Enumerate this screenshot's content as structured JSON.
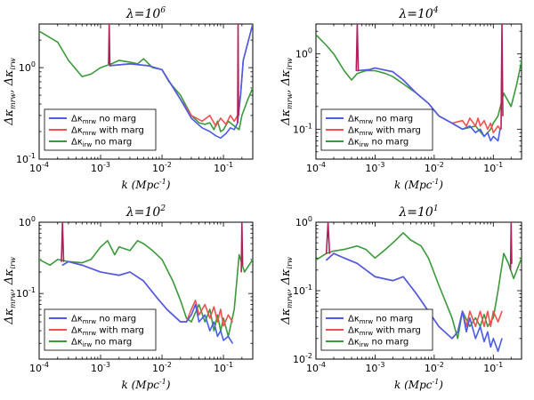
{
  "chart_data": [
    {
      "type": "line",
      "title": "λ = 10^6",
      "xlabel": "k (Mpc^-1)",
      "ylabel": "Δκ_mrw, Δκ_irw",
      "xscale": "log",
      "yscale": "log",
      "xlim": [
        0.0001,
        0.3
      ],
      "ylim": [
        0.1,
        3
      ],
      "x_ticks": [
        "10^-4",
        "10^-3",
        "10^-2",
        "10^-1"
      ],
      "y_ticks": [
        "10^-1",
        "10^0"
      ],
      "legend": {
        "placement": "lower-left",
        "entries": [
          "Δκ_mrw no marg",
          "Δκ_mrw with marg",
          "Δκ_irw no marg"
        ]
      },
      "series": [
        {
          "name": "Δκ_mrw no marg",
          "color": "#4b5ce8",
          "x": [
            0.0014,
            0.003,
            0.006,
            0.01,
            0.02,
            0.03,
            0.045,
            0.06,
            0.075,
            0.09,
            0.11,
            0.13,
            0.15,
            0.17,
            0.19,
            0.21,
            0.3
          ],
          "y": [
            1.05,
            1.1,
            1.05,
            0.95,
            0.45,
            0.28,
            0.22,
            0.2,
            0.18,
            0.17,
            0.19,
            0.22,
            0.21,
            0.25,
            0.5,
            1.2,
            3
          ]
        },
        {
          "name": "Δκ_mrw with marg",
          "color": "#f05050",
          "x": [
            0.0014,
            0.003,
            0.006,
            0.01,
            0.02,
            0.03,
            0.045,
            0.06,
            0.075,
            0.09,
            0.11,
            0.13,
            0.15,
            0.17,
            0.19,
            0.21,
            0.3
          ],
          "y": [
            1.05,
            1.1,
            1.05,
            0.95,
            0.45,
            0.3,
            0.26,
            0.3,
            0.23,
            0.28,
            0.24,
            0.3,
            0.26,
            0.3,
            0.5,
            1.2,
            3
          ]
        },
        {
          "name": "Δκ_irw no marg",
          "color": "#3a9a3a",
          "x": [
            0.0001,
            0.0002,
            0.0003,
            0.0005,
            0.0007,
            0.001,
            0.0015,
            0.002,
            0.003,
            0.004,
            0.005,
            0.007,
            0.01,
            0.013,
            0.02,
            0.03,
            0.04,
            0.05,
            0.06,
            0.07,
            0.08,
            0.09,
            0.1,
            0.12,
            0.15,
            0.18,
            0.2,
            0.25,
            0.3
          ],
          "y": [
            2.5,
            1.9,
            1.2,
            0.8,
            0.85,
            1.0,
            1.1,
            1.2,
            1.15,
            1.1,
            1.25,
            1.0,
            0.95,
            0.7,
            0.5,
            0.3,
            0.25,
            0.24,
            0.25,
            0.21,
            0.26,
            0.2,
            0.21,
            0.26,
            0.23,
            0.21,
            0.3,
            0.45,
            0.6
          ]
        },
        {
          "name": "spike-left",
          "color": "#b0205a",
          "x": [
            0.00135,
            0.00138,
            0.00142
          ],
          "y": [
            1.1,
            3.0,
            1.05
          ]
        },
        {
          "name": "spike-right",
          "color": "#b0205a",
          "x": [
            0.17,
            0.173,
            0.176
          ],
          "y": [
            0.25,
            3.0,
            0.3
          ]
        }
      ]
    },
    {
      "type": "line",
      "title": "λ = 10^4",
      "xlabel": "k (Mpc^-1)",
      "ylabel": "Δκ_mrw, Δκ_irw",
      "xscale": "log",
      "yscale": "log",
      "xlim": [
        0.0001,
        0.3
      ],
      "ylim": [
        0.04,
        2.5
      ],
      "x_ticks": [
        "10^-4",
        "10^-3",
        "10^-2",
        "10^-1"
      ],
      "y_ticks": [
        "10^-1",
        "10^0"
      ],
      "legend": {
        "placement": "lower-left",
        "entries": [
          "Δκ_mrw no marg",
          "Δκ_mrw with marg",
          "Δκ_irw no marg"
        ]
      },
      "series": [
        {
          "name": "Δκ_mrw no marg",
          "color": "#4b5ce8",
          "x": [
            0.0005,
            0.0008,
            0.001,
            0.002,
            0.003,
            0.005,
            0.008,
            0.012,
            0.02,
            0.03,
            0.04,
            0.05,
            0.06,
            0.07,
            0.08,
            0.09,
            0.1,
            0.12,
            0.13
          ],
          "y": [
            0.6,
            0.62,
            0.65,
            0.58,
            0.45,
            0.3,
            0.22,
            0.15,
            0.12,
            0.1,
            0.11,
            0.09,
            0.1,
            0.08,
            0.09,
            0.07,
            0.08,
            0.07,
            0.1
          ]
        },
        {
          "name": "Δκ_mrw with marg",
          "color": "#f05050",
          "x": [
            0.0005,
            0.0008,
            0.001,
            0.002,
            0.003,
            0.005,
            0.008,
            0.012,
            0.02,
            0.03,
            0.035,
            0.04,
            0.05,
            0.055,
            0.06,
            0.07,
            0.08,
            0.09,
            0.1,
            0.12,
            0.13
          ],
          "y": [
            0.6,
            0.62,
            0.65,
            0.58,
            0.45,
            0.3,
            0.22,
            0.15,
            0.12,
            0.13,
            0.11,
            0.14,
            0.11,
            0.14,
            0.11,
            0.13,
            0.1,
            0.12,
            0.09,
            0.11,
            0.1
          ]
        },
        {
          "name": "Δκ_irw no marg",
          "color": "#3a9a3a",
          "x": [
            0.0001,
            0.00015,
            0.0002,
            0.0003,
            0.0004,
            0.0005,
            0.0007,
            0.001,
            0.0015,
            0.002,
            0.003,
            0.005,
            0.008,
            0.012,
            0.02,
            0.03,
            0.05,
            0.07,
            0.09,
            0.1,
            0.12,
            0.15,
            0.2,
            0.25,
            0.3
          ],
          "y": [
            1.8,
            1.3,
            1.0,
            0.6,
            0.45,
            0.55,
            0.6,
            0.6,
            0.55,
            0.5,
            0.4,
            0.3,
            0.22,
            0.15,
            0.12,
            0.1,
            0.11,
            0.08,
            0.1,
            0.12,
            0.15,
            0.3,
            0.2,
            0.4,
            0.8
          ]
        },
        {
          "name": "spike-left",
          "color": "#b0205a",
          "x": [
            0.00048,
            0.0005,
            0.00052
          ],
          "y": [
            0.6,
            2.5,
            0.6
          ]
        },
        {
          "name": "spike-right",
          "color": "#b0205a",
          "x": [
            0.135,
            0.14,
            0.145
          ],
          "y": [
            0.1,
            2.5,
            0.15
          ]
        }
      ]
    },
    {
      "type": "line",
      "title": "λ = 10^2",
      "xlabel": "k (Mpc^-1)",
      "ylabel": "Δκ_mrw, Δκ_irw",
      "xscale": "log",
      "yscale": "log",
      "xlim": [
        0.0001,
        0.3
      ],
      "ylim": [
        0.012,
        1.0
      ],
      "x_ticks": [
        "10^-4",
        "10^-3",
        "10^-2",
        "10^-1"
      ],
      "y_ticks": [
        "10^-1",
        "10^0"
      ],
      "legend": {
        "placement": "lower-left",
        "entries": [
          "Δκ_mrw no marg",
          "Δκ_mrw with marg",
          "Δκ_irw no marg"
        ]
      },
      "series": [
        {
          "name": "Δκ_mrw no marg",
          "color": "#4b5ce8",
          "x": [
            0.00024,
            0.0003,
            0.0005,
            0.001,
            0.002,
            0.003,
            0.005,
            0.008,
            0.012,
            0.02,
            0.025,
            0.03,
            0.035,
            0.04,
            0.05,
            0.06,
            0.07,
            0.08,
            0.09,
            0.1,
            0.12,
            0.14
          ],
          "y": [
            0.25,
            0.28,
            0.25,
            0.2,
            0.18,
            0.2,
            0.15,
            0.09,
            0.06,
            0.04,
            0.04,
            0.05,
            0.07,
            0.04,
            0.05,
            0.03,
            0.04,
            0.025,
            0.03,
            0.022,
            0.025,
            0.02
          ]
        },
        {
          "name": "Δκ_mrw with marg",
          "color": "#f05050",
          "x": [
            0.00024,
            0.0003,
            0.0005,
            0.001,
            0.002,
            0.003,
            0.005,
            0.008,
            0.012,
            0.02,
            0.025,
            0.03,
            0.035,
            0.04,
            0.05,
            0.06,
            0.07,
            0.08,
            0.09,
            0.1,
            0.12,
            0.14
          ],
          "y": [
            0.25,
            0.28,
            0.25,
            0.2,
            0.18,
            0.2,
            0.15,
            0.09,
            0.06,
            0.04,
            0.04,
            0.06,
            0.08,
            0.05,
            0.07,
            0.045,
            0.065,
            0.04,
            0.06,
            0.035,
            0.05,
            0.04
          ]
        },
        {
          "name": "Δκ_irw no marg",
          "color": "#3a9a3a",
          "x": [
            0.0001,
            0.00015,
            0.0002,
            0.0003,
            0.0005,
            0.0007,
            0.001,
            0.0013,
            0.0017,
            0.002,
            0.003,
            0.004,
            0.005,
            0.007,
            0.01,
            0.015,
            0.02,
            0.025,
            0.03,
            0.04,
            0.05,
            0.06,
            0.07,
            0.08,
            0.09,
            0.1,
            0.12,
            0.15,
            0.18,
            0.22,
            0.3
          ],
          "y": [
            0.3,
            0.25,
            0.3,
            0.28,
            0.27,
            0.3,
            0.45,
            0.55,
            0.35,
            0.45,
            0.4,
            0.55,
            0.5,
            0.4,
            0.3,
            0.15,
            0.08,
            0.045,
            0.04,
            0.07,
            0.04,
            0.06,
            0.03,
            0.05,
            0.03,
            0.045,
            0.025,
            0.06,
            0.35,
            0.2,
            0.3
          ]
        },
        {
          "name": "spike-left",
          "color": "#b0205a",
          "x": [
            0.00023,
            0.00024,
            0.00025
          ],
          "y": [
            0.28,
            1.0,
            0.28
          ]
        },
        {
          "name": "spike-right",
          "color": "#b0205a",
          "x": [
            0.195,
            0.2,
            0.205
          ],
          "y": [
            0.2,
            1.0,
            0.25
          ]
        }
      ]
    },
    {
      "type": "line",
      "title": "λ = 10^1",
      "xlabel": "k (Mpc^-1)",
      "ylabel": "Δκ_mrw, Δκ_irw",
      "xscale": "log",
      "yscale": "log",
      "xlim": [
        0.0001,
        0.3
      ],
      "ylim": [
        0.01,
        1.0
      ],
      "x_ticks": [
        "10^-4",
        "10^-3",
        "10^-2",
        "10^-1"
      ],
      "y_ticks": [
        "10^-2",
        "10^-1",
        "10^0"
      ],
      "legend": {
        "placement": "lower-left",
        "entries": [
          "Δκ_mrw no marg",
          "Δκ_mrw with marg",
          "Δκ_irw no marg"
        ]
      },
      "series": [
        {
          "name": "Δκ_mrw no marg",
          "color": "#4b5ce8",
          "x": [
            0.00015,
            0.0002,
            0.0003,
            0.0005,
            0.001,
            0.002,
            0.003,
            0.005,
            0.008,
            0.012,
            0.02,
            0.025,
            0.03,
            0.035,
            0.04,
            0.05,
            0.06,
            0.07,
            0.08,
            0.09,
            0.1,
            0.12,
            0.14
          ],
          "y": [
            0.28,
            0.35,
            0.3,
            0.25,
            0.16,
            0.14,
            0.16,
            0.09,
            0.05,
            0.03,
            0.02,
            0.025,
            0.05,
            0.025,
            0.04,
            0.02,
            0.03,
            0.018,
            0.025,
            0.015,
            0.02,
            0.013,
            0.02
          ]
        },
        {
          "name": "Δκ_mrw with marg",
          "color": "#f05050",
          "x": [
            0.00015,
            0.0002,
            0.0003,
            0.0005,
            0.001,
            0.002,
            0.003,
            0.005,
            0.008,
            0.012,
            0.02,
            0.025,
            0.03,
            0.035,
            0.04,
            0.05,
            0.06,
            0.07,
            0.08,
            0.09,
            0.1,
            0.12,
            0.14
          ],
          "y": [
            0.28,
            0.35,
            0.3,
            0.25,
            0.16,
            0.14,
            0.16,
            0.09,
            0.05,
            0.03,
            0.02,
            0.025,
            0.05,
            0.03,
            0.05,
            0.03,
            0.05,
            0.03,
            0.05,
            0.03,
            0.05,
            0.035,
            0.05
          ]
        },
        {
          "name": "Δκ_irw no marg",
          "color": "#3a9a3a",
          "x": [
            0.0001,
            0.00015,
            0.0002,
            0.0003,
            0.0005,
            0.0007,
            0.001,
            0.0015,
            0.002,
            0.003,
            0.004,
            0.006,
            0.008,
            0.012,
            0.02,
            0.025,
            0.03,
            0.04,
            0.05,
            0.06,
            0.07,
            0.08,
            0.1,
            0.12,
            0.15,
            0.18,
            0.22,
            0.3
          ],
          "y": [
            0.28,
            0.35,
            0.38,
            0.4,
            0.45,
            0.4,
            0.3,
            0.4,
            0.5,
            0.7,
            0.55,
            0.45,
            0.3,
            0.12,
            0.04,
            0.02,
            0.05,
            0.03,
            0.04,
            0.03,
            0.045,
            0.03,
            0.04,
            0.1,
            0.35,
            0.25,
            0.15,
            0.3
          ]
        },
        {
          "name": "spike-left",
          "color": "#b0205a",
          "x": [
            0.00015,
            0.00016,
            0.00017
          ],
          "y": [
            0.35,
            1.0,
            0.35
          ]
        },
        {
          "name": "spike-right",
          "color": "#b0205a",
          "x": [
            0.195,
            0.2,
            0.205
          ],
          "y": [
            0.2,
            1.0,
            0.25
          ]
        }
      ]
    }
  ]
}
